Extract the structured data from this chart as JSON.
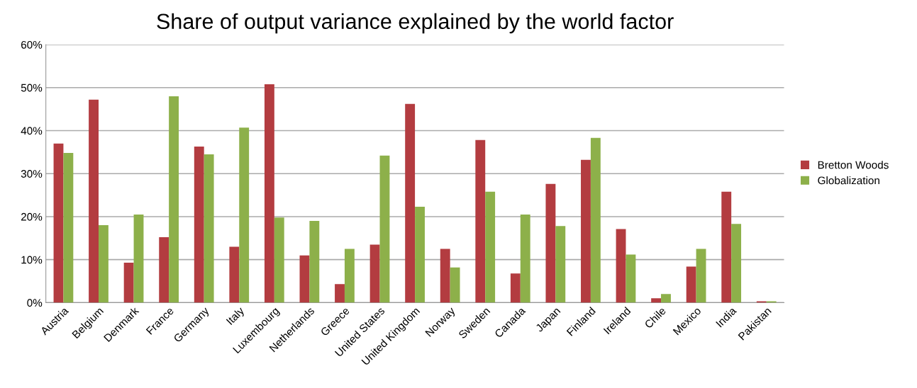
{
  "chart_data": {
    "type": "bar",
    "title": "Share of output variance explained by the world factor",
    "categories": [
      "Austria",
      "Belgium",
      "Denmark",
      "France",
      "Germany",
      "Italy",
      "Luxembourg",
      "Netherlands",
      "Greece",
      "United States",
      "United Kingdom",
      "Norway",
      "Sweden",
      "Canada",
      "Japan",
      "Finland",
      "Ireland",
      "Chile",
      "Mexico",
      "India",
      "Pakistan"
    ],
    "series": [
      {
        "name": "Bretton Woods",
        "color": "#b33c40",
        "values": [
          37,
          47.2,
          9.3,
          15.2,
          36.3,
          13,
          50.8,
          11,
          4.3,
          13.5,
          46.2,
          12.5,
          37.8,
          6.8,
          27.6,
          33.2,
          17.1,
          1.0,
          8.4,
          25.8,
          0.3
        ]
      },
      {
        "name": "Globalization",
        "color": "#8db04a",
        "values": [
          34.8,
          18,
          20.5,
          48,
          34.5,
          40.7,
          19.8,
          19,
          12.5,
          34.2,
          22.3,
          8.2,
          25.8,
          20.5,
          17.8,
          38.3,
          11.2,
          2.0,
          12.5,
          18.3,
          0.3
        ]
      }
    ],
    "ylim": [
      0,
      60
    ],
    "yticks": [
      {
        "value": 0,
        "label": "0%"
      },
      {
        "value": 10,
        "label": "10%"
      },
      {
        "value": 20,
        "label": "20%"
      },
      {
        "value": 30,
        "label": "30%"
      },
      {
        "value": 40,
        "label": "40%"
      },
      {
        "value": 50,
        "label": "50%"
      },
      {
        "value": 60,
        "label": "60%"
      }
    ],
    "grid": "y",
    "legend": "right"
  }
}
